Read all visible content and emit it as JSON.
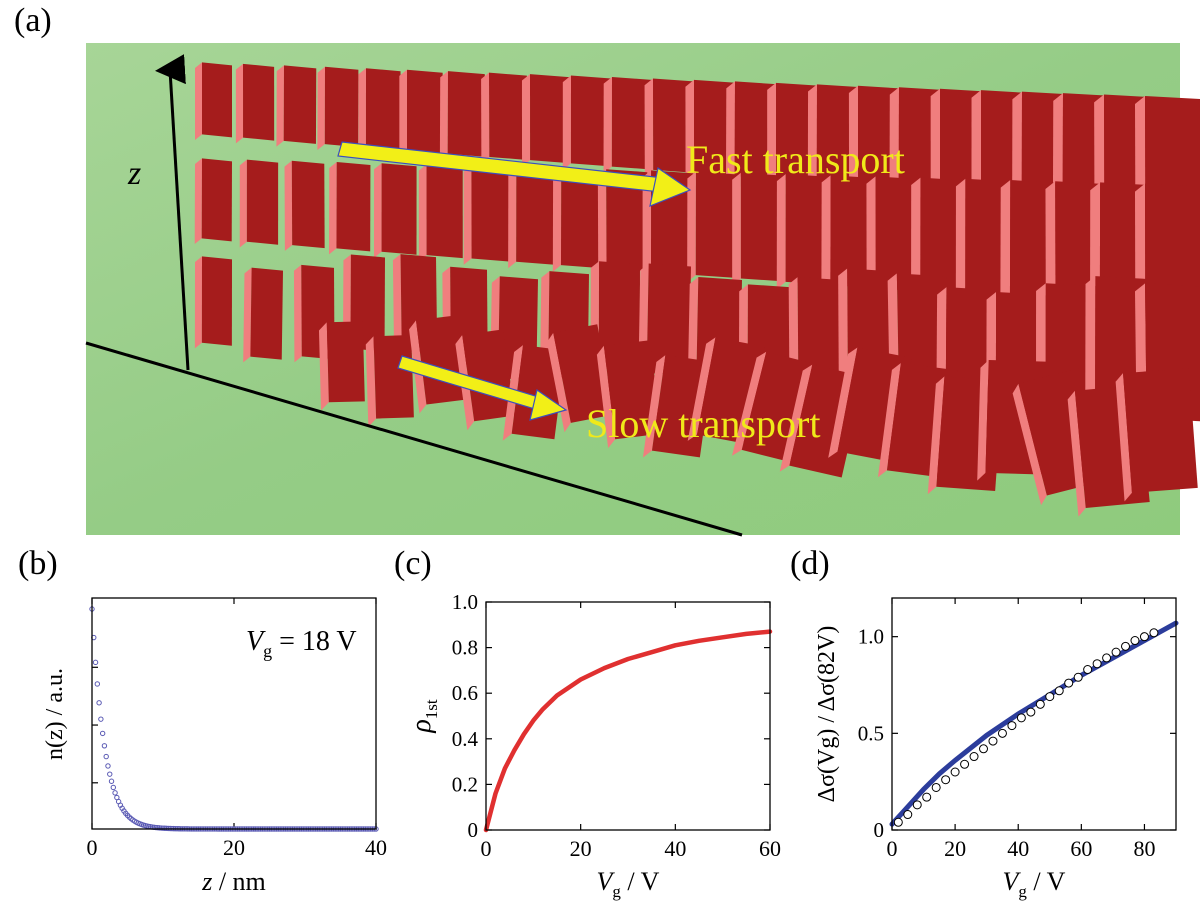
{
  "panel_labels": {
    "a": "(a)",
    "b": "(b)",
    "c": "(c)",
    "d": "(d)"
  },
  "illustration": {
    "axis_label": "z",
    "fast_label": "Fast transport",
    "slow_label": "Slow transport",
    "colors": {
      "background": "#9fd08e",
      "plate_face": "#a51c1c",
      "plate_edge": "#f07e7e",
      "arrow": "#f2ef17",
      "label": "#f0e91a"
    }
  },
  "chart_data": [
    {
      "id": "b",
      "type": "scatter",
      "annotation": {
        "var": "V",
        "sub": "g",
        "rest": " = 18 V"
      },
      "xlabel": {
        "main": "z",
        "unit": " / nm"
      },
      "ylabel": "n(z) / a.u.",
      "xlim": [
        0,
        40
      ],
      "xticks": [
        0,
        20,
        40
      ],
      "yticks_labeled": false,
      "marker": "open-circle",
      "color": "#5a5ab4",
      "series": [
        {
          "model": "exponential",
          "amplitude": 1.0,
          "decay_length_nm": 1.8,
          "x_range": [
            0,
            40
          ],
          "point_spacing_nm": 0.25
        }
      ]
    },
    {
      "id": "c",
      "type": "line",
      "xlabel": {
        "main": "V",
        "sub": "g",
        "unit": " / V"
      },
      "ylabel": {
        "main": "ρ",
        "sub": "1st"
      },
      "xlim": [
        0,
        60
      ],
      "ylim": [
        0,
        1.0
      ],
      "xticks": [
        0,
        20,
        40,
        60
      ],
      "yticks": [
        0,
        0.2,
        0.4,
        0.6,
        0.8,
        1.0
      ],
      "yticklabels": [
        "0",
        "0.2",
        "0.4",
        "0.6",
        "0.8",
        "1.0"
      ],
      "color": "#e03030",
      "series": [
        {
          "points": [
            [
              0,
              0.0
            ],
            [
              2,
              0.16
            ],
            [
              4,
              0.27
            ],
            [
              6,
              0.35
            ],
            [
              8,
              0.42
            ],
            [
              10,
              0.48
            ],
            [
              12,
              0.53
            ],
            [
              15,
              0.59
            ],
            [
              20,
              0.66
            ],
            [
              25,
              0.71
            ],
            [
              30,
              0.75
            ],
            [
              35,
              0.78
            ],
            [
              40,
              0.81
            ],
            [
              45,
              0.83
            ],
            [
              50,
              0.845
            ],
            [
              55,
              0.86
            ],
            [
              60,
              0.87
            ]
          ]
        }
      ]
    },
    {
      "id": "d",
      "type": "scatter+line",
      "xlabel": {
        "main": "V",
        "sub": "g",
        "unit": " / V"
      },
      "ylabel": "Δσ(Vg) / Δσ(82V)",
      "xlim": [
        0,
        90
      ],
      "ylim": [
        0,
        1.2
      ],
      "xticks": [
        0,
        20,
        40,
        60,
        80
      ],
      "yticks": [
        0,
        0.5,
        1.0
      ],
      "yticklabels": [
        "0",
        "0.5",
        "1.0"
      ],
      "series": [
        {
          "kind": "points",
          "marker": "open-circle",
          "color": "#000000",
          "points": [
            [
              2,
              0.04
            ],
            [
              5,
              0.08
            ],
            [
              8,
              0.13
            ],
            [
              11,
              0.17
            ],
            [
              14,
              0.22
            ],
            [
              17,
              0.26
            ],
            [
              20,
              0.3
            ],
            [
              23,
              0.34
            ],
            [
              26,
              0.38
            ],
            [
              29,
              0.42
            ],
            [
              32,
              0.46
            ],
            [
              35,
              0.5
            ],
            [
              38,
              0.54
            ],
            [
              41,
              0.58
            ],
            [
              44,
              0.61
            ],
            [
              47,
              0.65
            ],
            [
              50,
              0.69
            ],
            [
              53,
              0.72
            ],
            [
              56,
              0.76
            ],
            [
              59,
              0.79
            ],
            [
              62,
              0.83
            ],
            [
              65,
              0.86
            ],
            [
              68,
              0.89
            ],
            [
              71,
              0.92
            ],
            [
              74,
              0.95
            ],
            [
              77,
              0.98
            ],
            [
              80,
              1.0
            ],
            [
              83,
              1.02
            ]
          ]
        },
        {
          "kind": "fit",
          "color": "#2c3d9c",
          "points": [
            [
              0,
              0.03
            ],
            [
              5,
              0.12
            ],
            [
              10,
              0.21
            ],
            [
              15,
              0.29
            ],
            [
              20,
              0.36
            ],
            [
              30,
              0.49
            ],
            [
              40,
              0.6
            ],
            [
              50,
              0.7
            ],
            [
              60,
              0.8
            ],
            [
              70,
              0.89
            ],
            [
              80,
              0.98
            ],
            [
              90,
              1.07
            ]
          ]
        }
      ]
    }
  ]
}
